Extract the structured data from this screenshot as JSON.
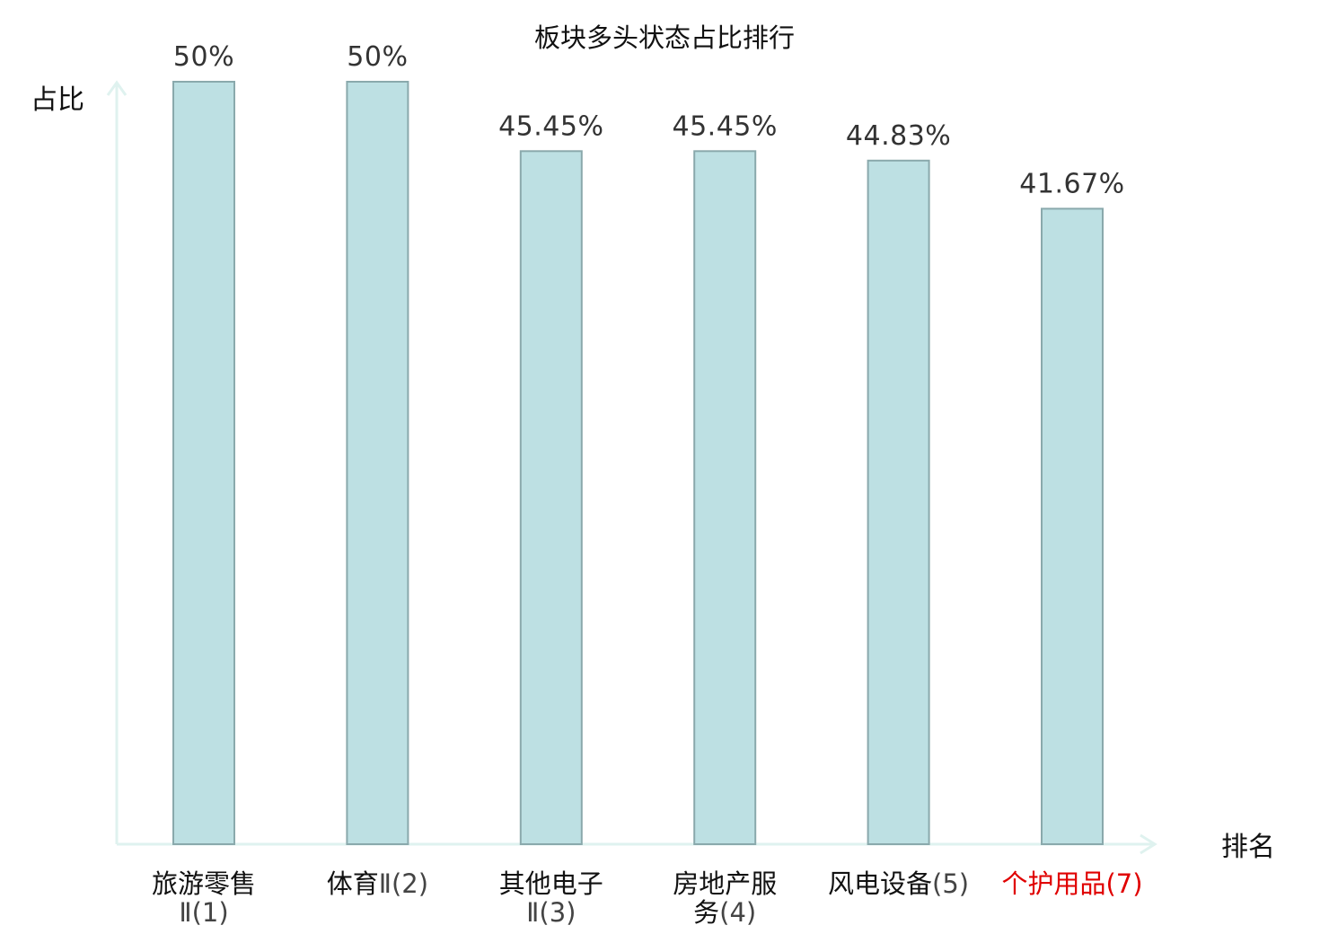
{
  "chart_data": {
    "type": "bar",
    "title": "板块多头状态占比排行",
    "xlabel": "排名",
    "ylabel": "占比",
    "ylim": [
      0,
      50
    ],
    "grid": false,
    "categories": [
      {
        "lines": [
          {
            "name": "旅游零售",
            "rank": ""
          },
          {
            "name": "",
            "rank": "Ⅱ(1)"
          }
        ],
        "highlight": false
      },
      {
        "lines": [
          {
            "name": "体育",
            "rank": "Ⅱ(2)"
          }
        ],
        "highlight": false
      },
      {
        "lines": [
          {
            "name": "其他电子",
            "rank": ""
          },
          {
            "name": "",
            "rank": "Ⅱ(3)"
          }
        ],
        "highlight": false
      },
      {
        "lines": [
          {
            "name": "房地产服",
            "rank": ""
          },
          {
            "name": "务",
            "rank": "(4)"
          }
        ],
        "highlight": false
      },
      {
        "lines": [
          {
            "name": "风电设备",
            "rank": "(5)"
          }
        ],
        "highlight": false
      },
      {
        "lines": [
          {
            "name": "个护用品",
            "rank": "(7)"
          }
        ],
        "highlight": true
      }
    ],
    "values": [
      50,
      50,
      45.45,
      45.45,
      44.83,
      41.67
    ],
    "value_labels": [
      "50%",
      "50%",
      "45.45%",
      "45.45%",
      "44.83%",
      "41.67%"
    ],
    "colors": {
      "bar_fill": "#bde0e3",
      "bar_stroke": "#8aa9ac",
      "axis": "#dff2ef",
      "highlight": "#e00000"
    }
  }
}
